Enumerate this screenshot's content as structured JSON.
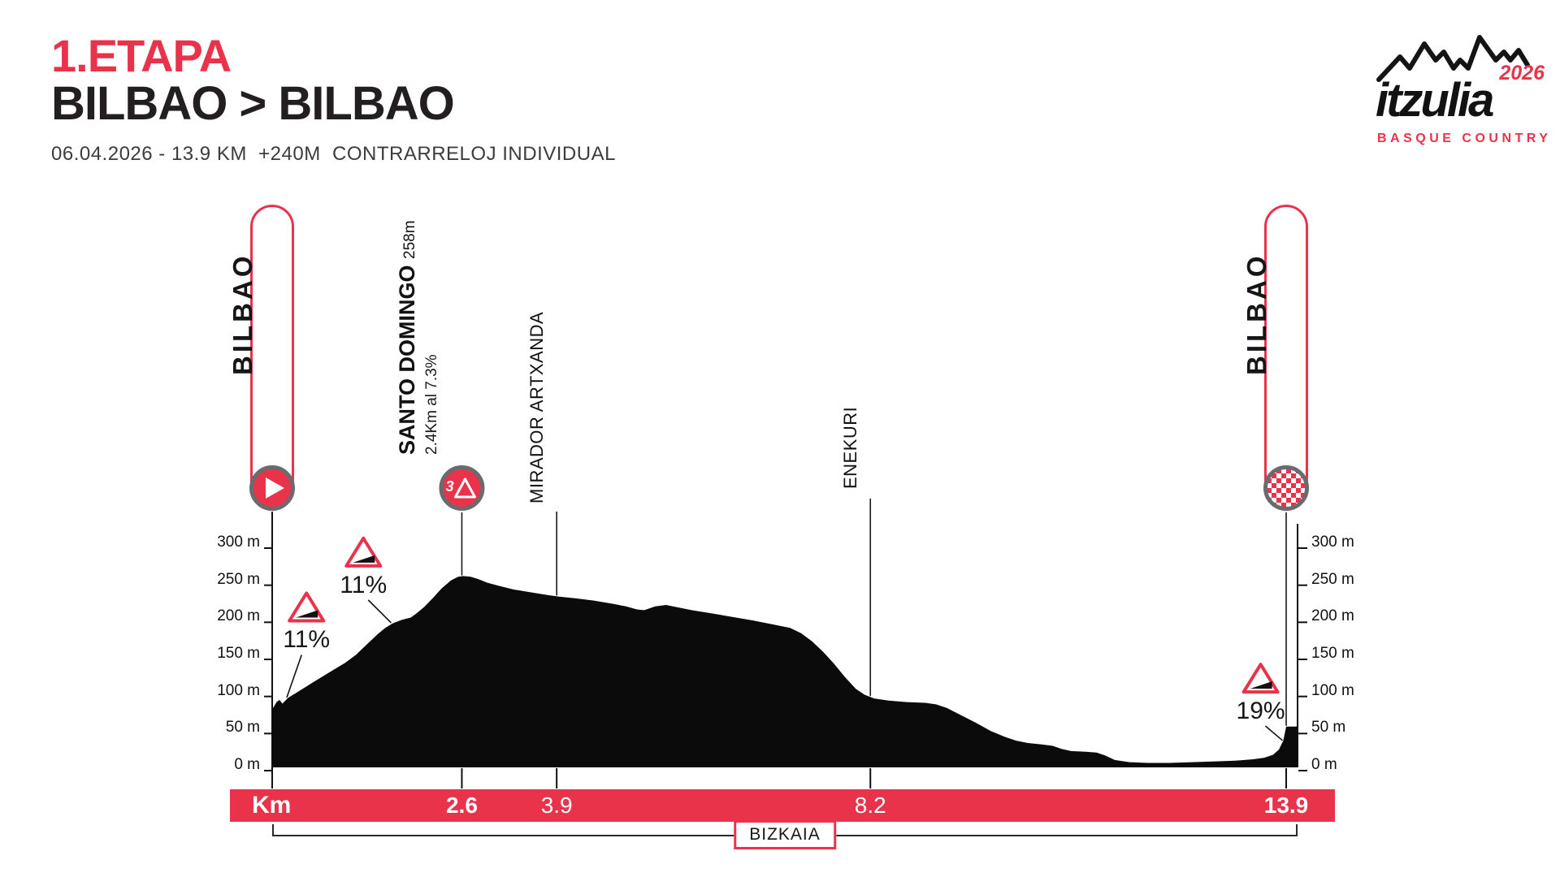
{
  "header": {
    "stage": "1.ETAPA",
    "route": "BILBAO > BILBAO",
    "details": "06.04.2026 - 13.9 KM  +240M  CONTRARRELOJ INDIVIDUAL"
  },
  "logo": {
    "wordmark": "itzulia",
    "year": "2026",
    "subtitle": "BASQUE COUNTRY"
  },
  "colors": {
    "red": "#e9334b",
    "profile_black": "#0b0b0b",
    "ring_gray": "#6a6b6e"
  },
  "chart_data": {
    "type": "area",
    "title": "Stage 1 elevation profile",
    "xlabel": "Km",
    "ylabel": "m",
    "xlim": [
      0,
      13.9
    ],
    "ylim": [
      0,
      300
    ],
    "grid": false,
    "y_ticks": [
      {
        "m": 300,
        "label": "300 m"
      },
      {
        "m": 250,
        "label": "250 m"
      },
      {
        "m": 200,
        "label": "200 m"
      },
      {
        "m": 150,
        "label": "150 m"
      },
      {
        "m": 100,
        "label": "100 m"
      },
      {
        "m": 50,
        "label": "50 m"
      },
      {
        "m": 0,
        "label": "0 m"
      }
    ],
    "km_axis": {
      "label": "Km",
      "ticks": [
        {
          "km": 2.6,
          "label": "2.6",
          "bold": true
        },
        {
          "km": 3.9,
          "label": "3.9",
          "bold": false
        },
        {
          "km": 8.2,
          "label": "8.2",
          "bold": false
        },
        {
          "km": 13.9,
          "label": "13.9",
          "bold": true
        }
      ]
    },
    "markers": [
      {
        "type": "start",
        "km": 0,
        "label": "BILBAO",
        "icon": "play-icon"
      },
      {
        "type": "climb",
        "km": 2.6,
        "label": "SANTO DOMINGO",
        "elevation": "258m",
        "detail": "2.4Km al 7.3%",
        "category": "3",
        "icon": "category-3-climb-icon"
      },
      {
        "type": "waypoint",
        "km": 3.9,
        "label": "MIRADOR ARTXANDA"
      },
      {
        "type": "waypoint",
        "km": 8.2,
        "label": "ENEKURI"
      },
      {
        "type": "finish",
        "km": 13.9,
        "label": "BILBAO",
        "icon": "checkered-flag-icon"
      }
    ],
    "gradients": [
      {
        "label": "11%",
        "icon_km": 0.47,
        "icon_m": 213,
        "target_km": 0.2
      },
      {
        "label": "11%",
        "icon_km": 1.25,
        "icon_m": 287,
        "target_km": 1.63
      },
      {
        "label": "19%",
        "icon_km": 13.55,
        "icon_m": 117,
        "target_km": 13.85
      }
    ],
    "region": "BIZKAIA",
    "profile": [
      [
        0,
        78
      ],
      [
        0.06,
        88
      ],
      [
        0.1,
        91
      ],
      [
        0.14,
        86
      ],
      [
        0.22,
        94
      ],
      [
        0.32,
        100
      ],
      [
        0.5,
        111
      ],
      [
        0.68,
        122
      ],
      [
        0.85,
        132
      ],
      [
        1.0,
        141
      ],
      [
        1.15,
        152
      ],
      [
        1.3,
        166
      ],
      [
        1.45,
        180
      ],
      [
        1.55,
        188
      ],
      [
        1.65,
        194
      ],
      [
        1.78,
        199
      ],
      [
        1.9,
        202
      ],
      [
        1.97,
        207
      ],
      [
        2.08,
        216
      ],
      [
        2.2,
        228
      ],
      [
        2.32,
        241
      ],
      [
        2.45,
        252
      ],
      [
        2.55,
        257
      ],
      [
        2.62,
        258
      ],
      [
        2.72,
        257
      ],
      [
        2.82,
        254
      ],
      [
        2.95,
        249
      ],
      [
        3.1,
        245
      ],
      [
        3.3,
        240
      ],
      [
        3.55,
        236
      ],
      [
        3.8,
        232
      ],
      [
        3.95,
        230
      ],
      [
        4.15,
        228
      ],
      [
        4.4,
        225
      ],
      [
        4.65,
        221
      ],
      [
        4.85,
        217
      ],
      [
        5.0,
        213
      ],
      [
        5.1,
        212
      ],
      [
        5.25,
        217
      ],
      [
        5.4,
        219
      ],
      [
        5.55,
        216
      ],
      [
        5.75,
        212
      ],
      [
        6.0,
        208
      ],
      [
        6.3,
        203
      ],
      [
        6.6,
        198
      ],
      [
        6.9,
        192
      ],
      [
        7.1,
        188
      ],
      [
        7.25,
        181
      ],
      [
        7.4,
        170
      ],
      [
        7.55,
        156
      ],
      [
        7.7,
        140
      ],
      [
        7.85,
        122
      ],
      [
        8.0,
        106
      ],
      [
        8.12,
        98
      ],
      [
        8.25,
        93
      ],
      [
        8.45,
        90
      ],
      [
        8.7,
        88
      ],
      [
        8.95,
        87
      ],
      [
        9.1,
        85
      ],
      [
        9.25,
        80
      ],
      [
        9.45,
        70
      ],
      [
        9.65,
        60
      ],
      [
        9.85,
        49
      ],
      [
        10.05,
        41
      ],
      [
        10.2,
        36
      ],
      [
        10.35,
        33
      ],
      [
        10.55,
        31
      ],
      [
        10.7,
        29
      ],
      [
        10.82,
        25
      ],
      [
        10.95,
        22
      ],
      [
        11.15,
        21
      ],
      [
        11.3,
        20
      ],
      [
        11.42,
        16
      ],
      [
        11.55,
        10
      ],
      [
        11.75,
        7
      ],
      [
        12.0,
        6
      ],
      [
        12.3,
        6
      ],
      [
        12.6,
        7
      ],
      [
        12.9,
        8
      ],
      [
        13.2,
        9
      ],
      [
        13.45,
        11
      ],
      [
        13.6,
        13
      ],
      [
        13.72,
        17
      ],
      [
        13.8,
        24
      ],
      [
        13.86,
        36
      ],
      [
        13.9,
        55
      ]
    ]
  }
}
